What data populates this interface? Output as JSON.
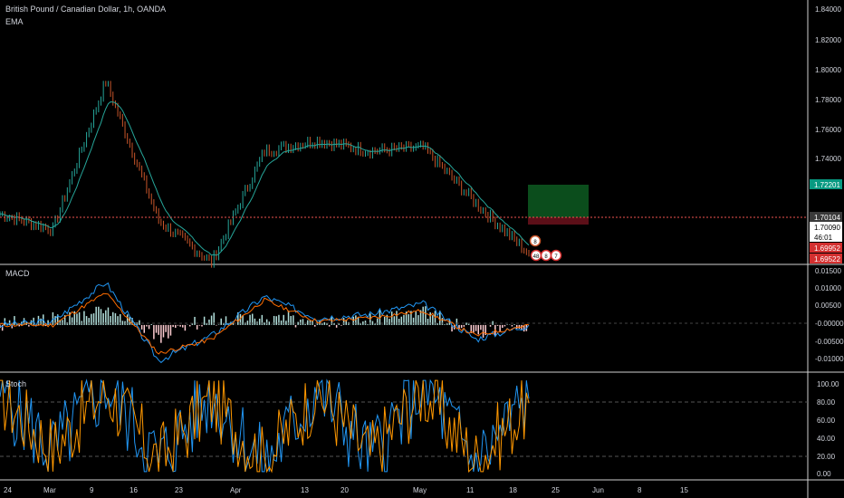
{
  "header": {
    "symbol": "British Pound / Canadian Dollar, 1h, OANDA",
    "indicator": "EMA"
  },
  "price_axis": {
    "ticks": [
      "1.84000",
      "1.82000",
      "1.80000",
      "1.78000",
      "1.76000",
      "1.74000",
      "1.72000",
      "1.70000",
      "1.69522"
    ]
  },
  "price_labels": [
    {
      "text": "1.72201",
      "value": 1.72201,
      "color": "#089981"
    },
    {
      "text": "1.70104",
      "value": 1.70104,
      "color": "#3a3a3a"
    },
    {
      "text": "1.70090",
      "value": 1.7009,
      "color": "#1e1e1e"
    },
    {
      "text": "46:01",
      "value": 1.6976,
      "color": "#1e1e1e"
    },
    {
      "text": "1.69952",
      "value": 1.69952,
      "color": "#d32f2f"
    },
    {
      "text": "1.69522",
      "value": 1.69522,
      "color": "#d32f2f"
    }
  ],
  "macd": {
    "label": "MACD",
    "ticks": [
      "0.01500",
      "0.01000",
      "0.00500",
      "-0.00000",
      "-0.00500",
      "-0.01000"
    ]
  },
  "stoch": {
    "label": "Stoch",
    "ticks": [
      "100.00",
      "80.00",
      "60.00",
      "40.00",
      "20.00",
      "0.00"
    ]
  },
  "time_axis": {
    "labels": [
      "24",
      "Mar",
      "9",
      "16",
      "23",
      "Apr",
      "13",
      "20",
      "May",
      "11",
      "18",
      "25",
      "Jun",
      "8",
      "15"
    ]
  },
  "markers": {
    "row1": "8",
    "row2": [
      "48",
      "8",
      "7"
    ]
  },
  "colors": {
    "bg": "#000000",
    "up": "#26a69a",
    "down": "#ef5350",
    "candle": "#c8552a",
    "ema": "#26a69a",
    "macd_line": "#2196f3",
    "signal_line": "#ff6d00",
    "stoch_k": "#2196f3",
    "stoch_d": "#ff9800",
    "hline": "#ef5350",
    "target": "#0b4d1c",
    "stop": "#5c0f18"
  },
  "chart_data": [
    {
      "type": "candlestick",
      "title": "British Pound / Canadian Dollar, 1h, OANDA",
      "ylim": [
        1.695,
        1.845
      ],
      "x": [
        "24",
        "Mar",
        "9",
        "16",
        "23",
        "Apr",
        "13",
        "20",
        "May",
        "11",
        "18"
      ],
      "close": [
        1.724,
        1.715,
        1.8,
        1.72,
        1.696,
        1.76,
        1.766,
        1.76,
        1.762,
        1.73,
        1.701
      ],
      "current_price": 1.70104,
      "position": {
        "entry": 1.70104,
        "target": 1.72201,
        "stop": 1.69952
      }
    },
    {
      "type": "line",
      "title": "MACD",
      "ylim": [
        -0.0125,
        0.0155
      ],
      "x": [
        "24",
        "Mar",
        "9",
        "16",
        "23",
        "Apr",
        "13",
        "20",
        "May",
        "11",
        "18"
      ],
      "series": [
        {
          "values": [
            0.0,
            0.001,
            0.012,
            -0.01,
            -0.003,
            0.008,
            0.002,
            0.003,
            0.006,
            -0.004,
            0.0
          ]
        },
        {
          "values": [
            0.0,
            0.0,
            0.009,
            -0.008,
            -0.004,
            0.007,
            0.001,
            0.002,
            0.004,
            -0.003,
            0.0
          ]
        }
      ]
    },
    {
      "type": "line",
      "title": "Stoch",
      "ylim": [
        -6,
        106
      ],
      "x": [
        "24",
        "Mar",
        "9",
        "16",
        "23",
        "Apr",
        "13",
        "20",
        "May",
        "11",
        "18"
      ],
      "series": [
        {
          "values": [
            90,
            20,
            95,
            10,
            85,
            5,
            92,
            15,
            96,
            8,
            80
          ]
        },
        {
          "values": [
            85,
            25,
            90,
            12,
            80,
            10,
            88,
            18,
            90,
            12,
            75
          ]
        }
      ]
    }
  ]
}
